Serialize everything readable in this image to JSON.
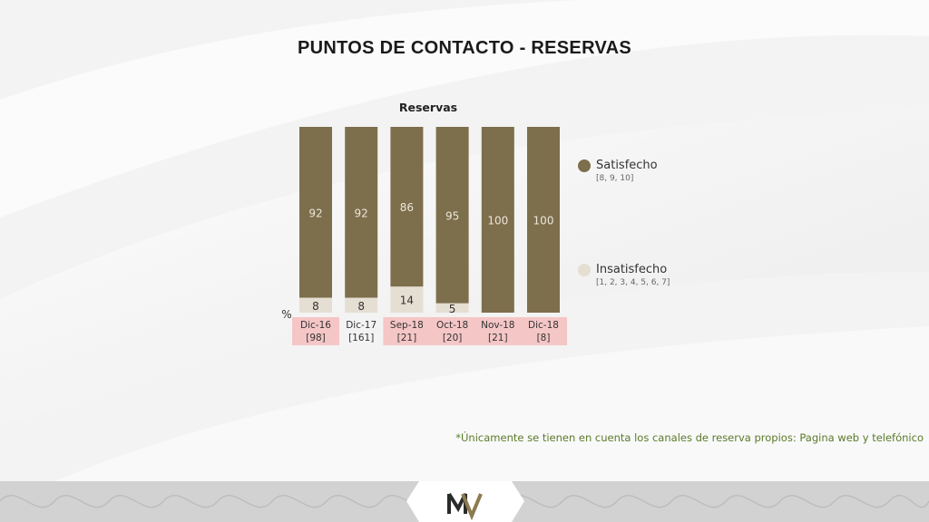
{
  "page": {
    "title": "PUNTOS DE CONTACTO - RESERVAS",
    "footnote": "*Únicamente se tienen en cuenta los canales de reserva propios: Pagina web y telefónico"
  },
  "legend": {
    "satisfied": {
      "label": "Satisfecho",
      "sub": "[8, 9, 10]"
    },
    "unsatisfied": {
      "label": "Insatisfecho",
      "sub": "[1, 2, 3, 4, 5, 6, 7]"
    }
  },
  "colors": {
    "satisfied": "#7d6e4c",
    "unsatisfied": "#e5ded2",
    "highlight": "#f5c6c6",
    "footnote": "#5a7a2a"
  },
  "icons": {
    "logo": "mv-monogram-icon"
  },
  "chart_data": {
    "type": "bar",
    "stacked": true,
    "title": "Reservas",
    "unit_label": "%",
    "categories": [
      "Dic-16",
      "Dic-17",
      "Sep-18",
      "Oct-18",
      "Nov-18",
      "Dic-18"
    ],
    "sample_sizes": [
      "[98]",
      "[161]",
      "[21]",
      "[20]",
      "[21]",
      "[8]"
    ],
    "highlighted": [
      true,
      false,
      true,
      true,
      true,
      true
    ],
    "series": [
      {
        "name": "Insatisfecho",
        "values": [
          8,
          8,
          14,
          5,
          0,
          0
        ]
      },
      {
        "name": "Satisfecho",
        "values": [
          92,
          92,
          86,
          95,
          100,
          100
        ]
      }
    ],
    "ylim": [
      0,
      100
    ],
    "legend_position": "right",
    "grid": false
  }
}
